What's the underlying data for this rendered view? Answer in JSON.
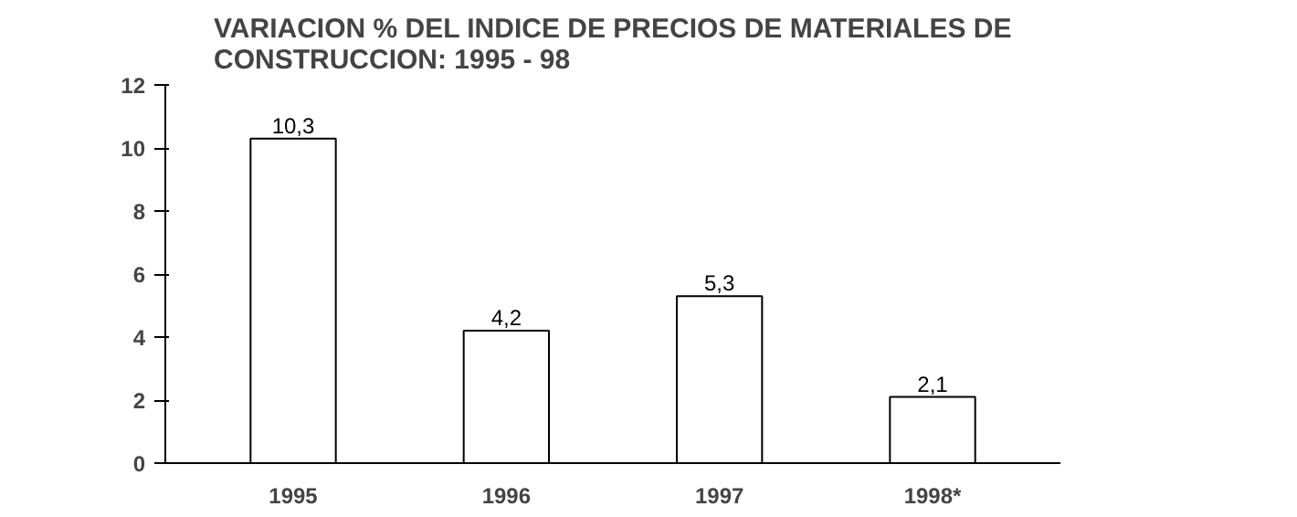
{
  "chart_data": {
    "type": "bar",
    "title": "VARIACION % DEL INDICE DE PRECIOS DE MATERIALES DE\nCONSTRUCCION:  1995 - 98",
    "categories": [
      "1995",
      "1996",
      "1997",
      "1998*"
    ],
    "values": [
      10.3,
      4.2,
      5.3,
      2.1
    ],
    "value_labels": [
      "10,3",
      "4,2",
      "5,3",
      "2,1"
    ],
    "color": "#ffffff",
    "ylim": [
      0,
      12
    ],
    "yticks": [
      0,
      2,
      4,
      6,
      8,
      10,
      12
    ],
    "grid": false
  }
}
